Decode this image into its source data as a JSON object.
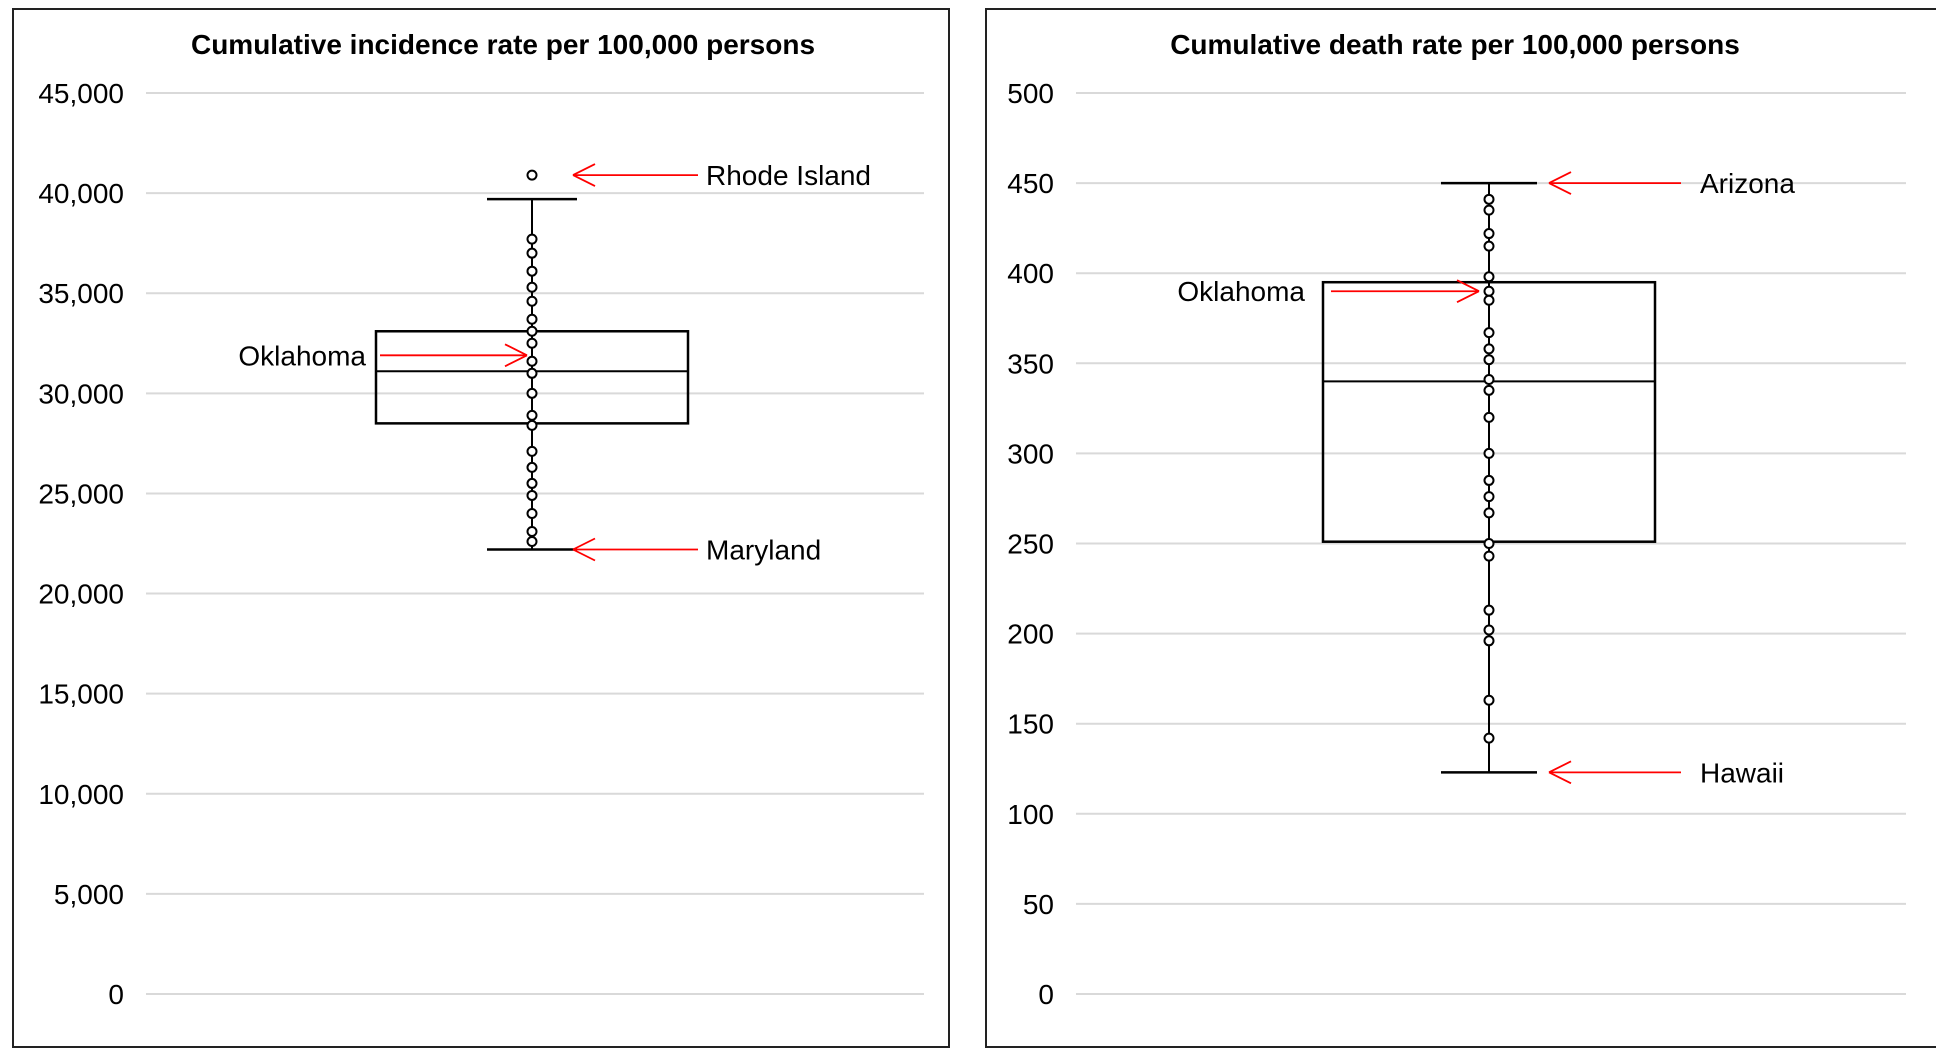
{
  "chart_data": [
    {
      "type": "box",
      "title": "Cumulative incidence rate per 100,000 persons",
      "ylim": [
        0,
        45000
      ],
      "yticks": [
        0,
        5000,
        10000,
        15000,
        20000,
        25000,
        30000,
        35000,
        40000,
        45000
      ],
      "ytick_labels": [
        "0",
        "5,000",
        "10,000",
        "15,000",
        "20,000",
        "25,000",
        "30,000",
        "35,000",
        "40,000",
        "45,000"
      ],
      "grid": true,
      "box": {
        "whisker_low": 22200,
        "q1": 28500,
        "median": 31100,
        "q3": 33100,
        "whisker_high": 39700
      },
      "points": [
        40900,
        37700,
        37000,
        36100,
        35300,
        34600,
        33700,
        33100,
        32500,
        31600,
        31000,
        30000,
        28900,
        28400,
        27100,
        26300,
        25500,
        24900,
        24000,
        23100,
        22600
      ],
      "annotations": [
        {
          "label": "Rhode Island",
          "value": 40900,
          "side": "right"
        },
        {
          "label": "Oklahoma",
          "value": 31900,
          "side": "left"
        },
        {
          "label": "Maryland",
          "value": 22200,
          "side": "right"
        }
      ]
    },
    {
      "type": "box",
      "title": "Cumulative death rate per 100,000 persons",
      "ylim": [
        0,
        500
      ],
      "yticks": [
        0,
        50,
        100,
        150,
        200,
        250,
        300,
        350,
        400,
        450,
        500
      ],
      "ytick_labels": [
        "0",
        "50",
        "100",
        "150",
        "200",
        "250",
        "300",
        "350",
        "400",
        "450",
        "500"
      ],
      "grid": true,
      "box": {
        "whisker_low": 123,
        "q1": 251,
        "median": 340,
        "q3": 395,
        "whisker_high": 450
      },
      "points": [
        441,
        435,
        422,
        415,
        398,
        390,
        385,
        367,
        358,
        352,
        341,
        335,
        320,
        300,
        285,
        276,
        267,
        250,
        243,
        213,
        202,
        196,
        163,
        142
      ],
      "annotations": [
        {
          "label": "Arizona",
          "value": 450,
          "side": "right"
        },
        {
          "label": "Oklahoma",
          "value": 390,
          "side": "left"
        },
        {
          "label": "Hawaii",
          "value": 123,
          "side": "right"
        }
      ]
    }
  ],
  "colors": {
    "grid": "#d9d9d9",
    "box": "#000000",
    "arrow": "#ff0000"
  }
}
